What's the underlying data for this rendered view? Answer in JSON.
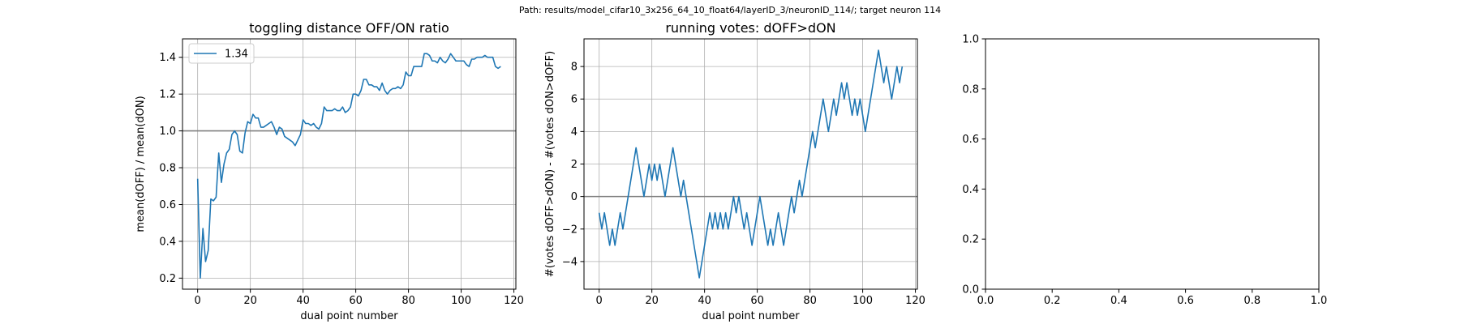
{
  "suptitle": "Path: results/model_cifar10_3x256_64_10_float64/layerID_3/neuronID_114/; target neuron 114",
  "chart_data": [
    {
      "type": "line",
      "title": "toggling distance OFF/ON ratio",
      "xlabel": "dual point number",
      "ylabel": "mean(dOFF) / mean(dON)",
      "xlim": [
        -5.75,
        120.75
      ],
      "ylim": [
        0.14,
        1.5
      ],
      "xticks": [
        0,
        20,
        40,
        60,
        80,
        100,
        120
      ],
      "yticks": [
        0.2,
        0.4,
        0.6,
        0.8,
        1.0,
        1.2,
        1.4
      ],
      "ytick_labels": [
        "0.2",
        "0.4",
        "0.6",
        "0.8",
        "1.0",
        "1.2",
        "1.4"
      ],
      "grid": true,
      "hline": 1.0,
      "legend": {
        "location": "upper-left",
        "entries": [
          "1.34"
        ]
      },
      "colors": {
        "series": "#1f77b4",
        "hline": "#808080",
        "grid": "#b0b0b0"
      },
      "series": [
        {
          "x": [
            0,
            1,
            2,
            3,
            4,
            5,
            6,
            7,
            8,
            9,
            10,
            11,
            12,
            13,
            14,
            15,
            16,
            17,
            18,
            19,
            20,
            21,
            22,
            23,
            24,
            25,
            26,
            27,
            28,
            29,
            30,
            31,
            32,
            33,
            34,
            35,
            36,
            37,
            38,
            39,
            40,
            41,
            42,
            43,
            44,
            45,
            46,
            47,
            48,
            49,
            50,
            51,
            52,
            53,
            54,
            55,
            56,
            57,
            58,
            59,
            60,
            61,
            62,
            63,
            64,
            65,
            66,
            67,
            68,
            69,
            70,
            71,
            72,
            73,
            74,
            75,
            76,
            77,
            78,
            79,
            80,
            81,
            82,
            83,
            84,
            85,
            86,
            87,
            88,
            89,
            90,
            91,
            92,
            93,
            94,
            95,
            96,
            97,
            98,
            99,
            100,
            101,
            102,
            103,
            104,
            105,
            106,
            107,
            108,
            109,
            110,
            111,
            112,
            113,
            114,
            115
          ],
          "y": [
            0.74,
            0.2,
            0.47,
            0.29,
            0.35,
            0.63,
            0.62,
            0.64,
            0.88,
            0.72,
            0.82,
            0.88,
            0.9,
            0.98,
            1.0,
            0.98,
            0.89,
            0.88,
            0.99,
            1.05,
            1.04,
            1.09,
            1.07,
            1.07,
            1.02,
            1.02,
            1.03,
            1.04,
            1.05,
            1.02,
            0.98,
            1.02,
            1.01,
            0.97,
            0.96,
            0.95,
            0.94,
            0.92,
            0.95,
            0.98,
            1.06,
            1.04,
            1.04,
            1.03,
            1.04,
            1.02,
            1.01,
            1.04,
            1.13,
            1.11,
            1.11,
            1.11,
            1.12,
            1.11,
            1.11,
            1.13,
            1.1,
            1.11,
            1.13,
            1.2,
            1.2,
            1.19,
            1.22,
            1.28,
            1.28,
            1.25,
            1.25,
            1.24,
            1.24,
            1.22,
            1.26,
            1.22,
            1.2,
            1.22,
            1.23,
            1.23,
            1.24,
            1.23,
            1.25,
            1.32,
            1.3,
            1.3,
            1.35,
            1.35,
            1.35,
            1.35,
            1.42,
            1.42,
            1.41,
            1.38,
            1.38,
            1.37,
            1.4,
            1.38,
            1.37,
            1.39,
            1.42,
            1.4,
            1.38,
            1.38,
            1.38,
            1.38,
            1.36,
            1.35,
            1.39,
            1.39,
            1.4,
            1.4,
            1.4,
            1.41,
            1.4,
            1.4,
            1.4,
            1.35,
            1.34,
            1.35
          ]
        }
      ]
    },
    {
      "type": "line",
      "title": "running votes: dOFF>dON",
      "xlabel": "dual point number",
      "ylabel": "#(votes dOFF>dON) - #(votes dON>dOFF)",
      "xlim": [
        -5.75,
        120.75
      ],
      "ylim": [
        -5.7,
        9.7
      ],
      "xticks": [
        0,
        20,
        40,
        60,
        80,
        100,
        120
      ],
      "yticks": [
        -4,
        -2,
        0,
        2,
        4,
        6,
        8
      ],
      "ytick_labels": [
        "−4",
        "−2",
        "0",
        "2",
        "4",
        "6",
        "8"
      ],
      "grid": true,
      "hline": 0,
      "colors": {
        "series": "#1f77b4",
        "hline": "#808080",
        "grid": "#b0b0b0"
      },
      "series": [
        {
          "x": [
            0,
            1,
            2,
            3,
            4,
            5,
            6,
            7,
            8,
            9,
            10,
            11,
            12,
            13,
            14,
            15,
            16,
            17,
            18,
            19,
            20,
            21,
            22,
            23,
            24,
            25,
            26,
            27,
            28,
            29,
            30,
            31,
            32,
            33,
            34,
            35,
            36,
            37,
            38,
            39,
            40,
            41,
            42,
            43,
            44,
            45,
            46,
            47,
            48,
            49,
            50,
            51,
            52,
            53,
            54,
            55,
            56,
            57,
            58,
            59,
            60,
            61,
            62,
            63,
            64,
            65,
            66,
            67,
            68,
            69,
            70,
            71,
            72,
            73,
            74,
            75,
            76,
            77,
            78,
            79,
            80,
            81,
            82,
            83,
            84,
            85,
            86,
            87,
            88,
            89,
            90,
            91,
            92,
            93,
            94,
            95,
            96,
            97,
            98,
            99,
            100,
            101,
            102,
            103,
            104,
            105,
            106,
            107,
            108,
            109,
            110,
            111,
            112,
            113,
            114,
            115
          ],
          "y": [
            -1,
            -2,
            -1,
            -2,
            -3,
            -2,
            -3,
            -2,
            -1,
            -2,
            -1,
            0,
            1,
            2,
            3,
            2,
            1,
            0,
            1,
            2,
            1,
            2,
            1,
            2,
            1,
            0,
            1,
            2,
            3,
            2,
            1,
            0,
            1,
            0,
            -1,
            -2,
            -3,
            -4,
            -5,
            -4,
            -3,
            -2,
            -1,
            -2,
            -1,
            -2,
            -1,
            -2,
            -1,
            -2,
            -1,
            0,
            -1,
            0,
            -1,
            -2,
            -1,
            -2,
            -3,
            -2,
            -1,
            0,
            -1,
            -2,
            -3,
            -2,
            -3,
            -2,
            -1,
            -2,
            -3,
            -2,
            -1,
            0,
            -1,
            0,
            1,
            0,
            1,
            2,
            3,
            4,
            3,
            4,
            5,
            6,
            5,
            4,
            5,
            6,
            5,
            6,
            7,
            6,
            7,
            6,
            5,
            6,
            5,
            6,
            5,
            4,
            5,
            6,
            7,
            8,
            9,
            8,
            7,
            8,
            7,
            6,
            7,
            8,
            7,
            8
          ]
        }
      ]
    },
    {
      "type": "line",
      "title": "",
      "xlabel": "",
      "ylabel": "",
      "xlim": [
        0,
        1
      ],
      "ylim": [
        0,
        1
      ],
      "xticks": [
        0,
        0.2,
        0.4,
        0.6,
        0.8,
        1.0
      ],
      "yticks": [
        0,
        0.2,
        0.4,
        0.6,
        0.8,
        1.0
      ],
      "xtick_labels": [
        "0.0",
        "0.2",
        "0.4",
        "0.6",
        "0.8",
        "1.0"
      ],
      "ytick_labels": [
        "0.0",
        "0.2",
        "0.4",
        "0.6",
        "0.8",
        "1.0"
      ],
      "grid": false,
      "series": []
    }
  ]
}
